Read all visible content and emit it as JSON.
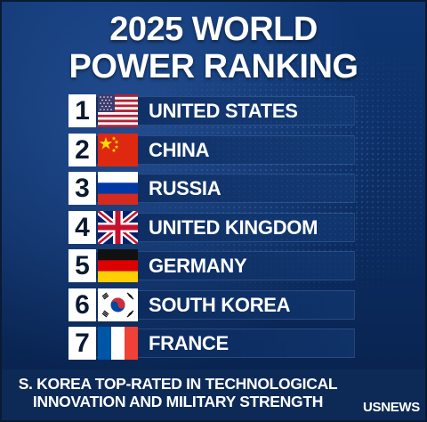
{
  "header": {
    "title_line1": "2025 WORLD",
    "title_line2": "POWER RANKING"
  },
  "rankings": [
    {
      "rank": "1",
      "country": "UNITED STATES",
      "flag": "us-flag"
    },
    {
      "rank": "2",
      "country": "CHINA",
      "flag": "china-flag"
    },
    {
      "rank": "3",
      "country": "RUSSIA",
      "flag": "russia-flag"
    },
    {
      "rank": "4",
      "country": "UNITED KINGDOM",
      "flag": "uk-flag"
    },
    {
      "rank": "5",
      "country": "GERMANY",
      "flag": "germany-flag"
    },
    {
      "rank": "6",
      "country": "SOUTH KOREA",
      "flag": "south-korea-flag"
    },
    {
      "rank": "7",
      "country": "FRANCE",
      "flag": "france-flag"
    }
  ],
  "footer": {
    "subtitle_line1": "S. KOREA TOP-RATED IN TECHNOLOGICAL",
    "subtitle_line2": "INNOVATION AND MILITARY STRENGTH",
    "source": "USNEWS"
  },
  "colors": {
    "background": "#0b2c60",
    "row_background": "#0f3672",
    "rank_box": "#ffffff",
    "text": "#ffffff"
  }
}
